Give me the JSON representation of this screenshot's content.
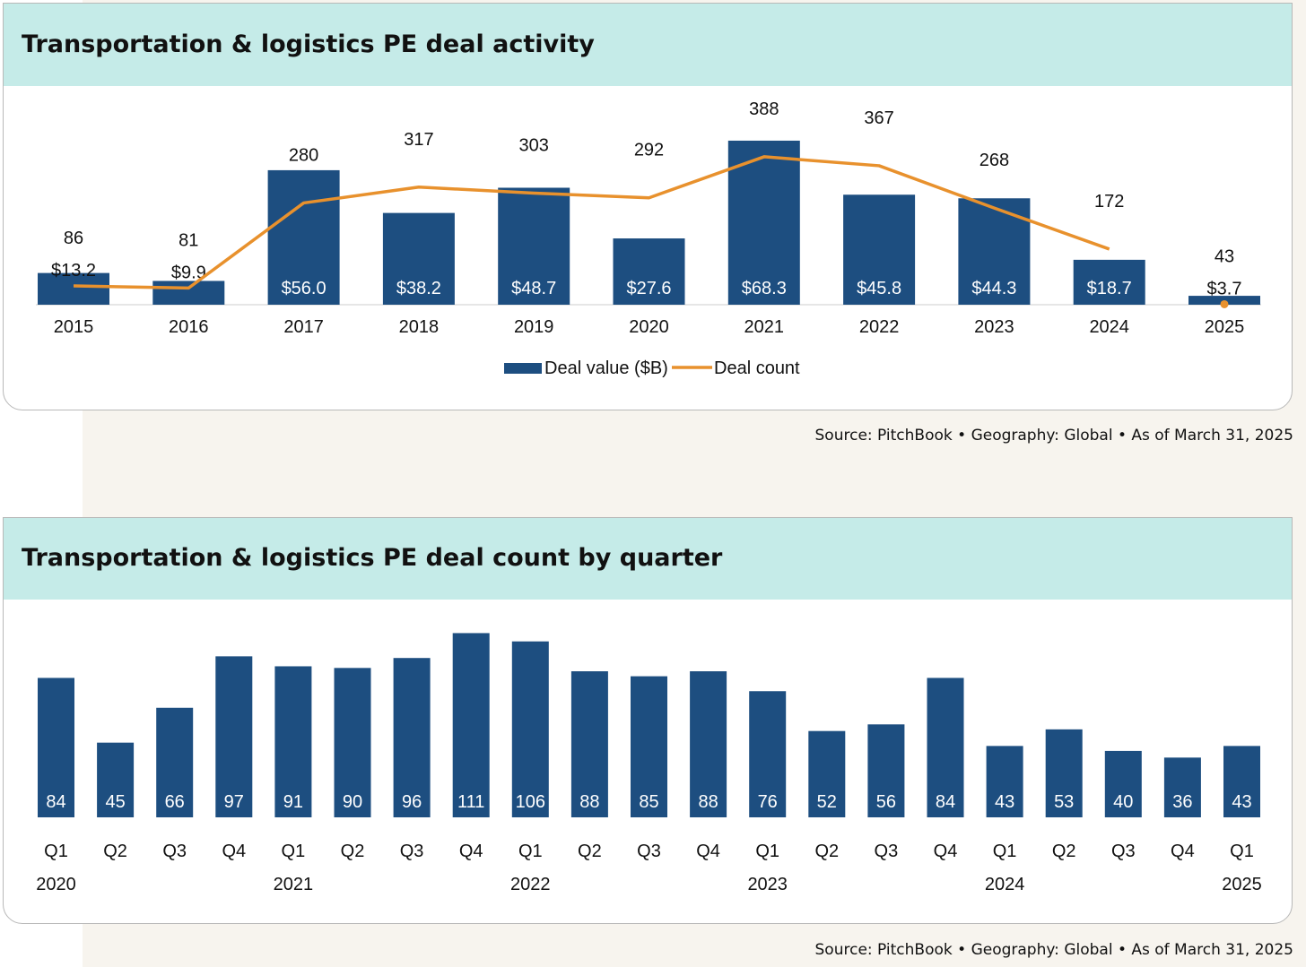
{
  "chart_data": [
    {
      "type": "bar",
      "title": "Transportation & logistics PE deal activity",
      "categories": [
        "2015",
        "2016",
        "2017",
        "2018",
        "2019",
        "2020",
        "2021",
        "2022",
        "2023",
        "2024",
        "2025"
      ],
      "series": [
        {
          "name": "Deal value ($B)",
          "type": "bar",
          "values": [
            13.2,
            9.9,
            56.0,
            38.2,
            48.7,
            27.6,
            68.3,
            45.8,
            44.3,
            18.7,
            3.7
          ],
          "labels": [
            "$13.2",
            "$9.9",
            "$56.0",
            "$38.2",
            "$48.7",
            "$27.6",
            "$68.3",
            "$45.8",
            "$44.3",
            "$18.7",
            "$3.7"
          ]
        },
        {
          "name": "Deal count",
          "type": "line",
          "values": [
            86,
            81,
            280,
            317,
            303,
            292,
            388,
            367,
            268,
            172,
            43
          ],
          "labels": [
            "86",
            "81",
            "280",
            "317",
            "303",
            "292",
            "388",
            "367",
            "268",
            "172",
            "43"
          ]
        }
      ],
      "legend": "bottom-center",
      "grid": false,
      "source": "Source: PitchBook  •  Geography: Global  •  As of March 31, 2025",
      "colors": {
        "bar": "#1d4e80",
        "line": "#e8912d"
      }
    },
    {
      "type": "bar",
      "title": "Transportation & logistics PE deal count by quarter",
      "categories": [
        "Q1",
        "Q2",
        "Q3",
        "Q4",
        "Q1",
        "Q2",
        "Q3",
        "Q4",
        "Q1",
        "Q2",
        "Q3",
        "Q4",
        "Q1",
        "Q2",
        "Q3",
        "Q4",
        "Q1",
        "Q2",
        "Q3",
        "Q4",
        "Q1"
      ],
      "year_labels": [
        {
          "index": 0,
          "label": "2020"
        },
        {
          "index": 4,
          "label": "2021"
        },
        {
          "index": 8,
          "label": "2022"
        },
        {
          "index": 12,
          "label": "2023"
        },
        {
          "index": 16,
          "label": "2024"
        },
        {
          "index": 20,
          "label": "2025"
        }
      ],
      "values": [
        84,
        45,
        66,
        97,
        91,
        90,
        96,
        111,
        106,
        88,
        85,
        88,
        76,
        52,
        56,
        84,
        43,
        53,
        40,
        36,
        43
      ],
      "grid": false,
      "source": "Source: PitchBook  •  Geography: Global  •  As of March 31, 2025",
      "colors": {
        "bar": "#1d4e80"
      }
    }
  ]
}
